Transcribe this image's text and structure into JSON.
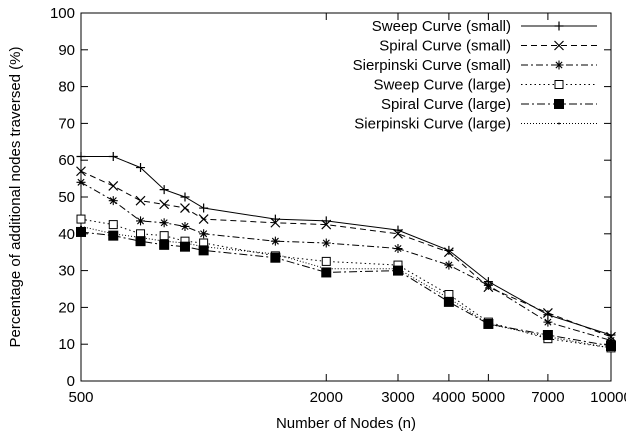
{
  "chart_data": {
    "type": "line",
    "xlabel": "Number of Nodes (n)",
    "ylabel": "Percentage of additional nodes traversed (%)",
    "xlim": [
      500,
      10000
    ],
    "ylim": [
      0,
      100
    ],
    "x_scale": "log",
    "x_ticks": [
      500,
      2000,
      3000,
      4000,
      5000,
      7000,
      10000
    ],
    "y_ticks": [
      0,
      10,
      20,
      30,
      40,
      50,
      60,
      70,
      80,
      90,
      100
    ],
    "grid": false,
    "legend_position": "top-right",
    "series": [
      {
        "name": "Sweep Curve (small)",
        "marker": "plus",
        "dash": "solid",
        "x": [
          500,
          600,
          700,
          800,
          900,
          1000,
          1500,
          2000,
          3000,
          4000,
          5000,
          7000,
          10000
        ],
        "y": [
          61,
          61,
          58,
          52,
          50,
          47,
          44,
          43.5,
          41,
          35.5,
          27,
          18,
          12.5
        ]
      },
      {
        "name": "Spiral Curve (small)",
        "marker": "cross",
        "dash": "dashed",
        "x": [
          500,
          600,
          700,
          800,
          900,
          1000,
          1500,
          2000,
          3000,
          4000,
          5000,
          7000,
          10000
        ],
        "y": [
          57,
          53,
          49,
          48,
          47,
          44,
          43,
          42.5,
          40,
          35,
          25.5,
          18.5,
          12
        ]
      },
      {
        "name": "Sierpinski Curve (small)",
        "marker": "star",
        "dash": "dashdot",
        "x": [
          500,
          600,
          700,
          800,
          900,
          1000,
          1500,
          2000,
          3000,
          4000,
          5000,
          7000,
          10000
        ],
        "y": [
          54,
          49,
          43.5,
          43,
          42,
          40,
          38,
          37.5,
          36,
          31.5,
          26,
          16,
          11
        ]
      },
      {
        "name": "Sweep Curve (large)",
        "marker": "square-open",
        "dash": "dotted",
        "x": [
          500,
          600,
          700,
          800,
          900,
          1000,
          1500,
          2000,
          3000,
          4000,
          5000,
          7000,
          10000
        ],
        "y": [
          44,
          42.5,
          40,
          39.5,
          38,
          37.5,
          34,
          32.5,
          31.5,
          23.5,
          16,
          11.5,
          9
        ]
      },
      {
        "name": "Spiral Curve (large)",
        "marker": "square-filled",
        "dash": "dashdot2",
        "x": [
          500,
          600,
          700,
          800,
          900,
          1000,
          1500,
          2000,
          3000,
          4000,
          5000,
          7000,
          10000
        ],
        "y": [
          40.5,
          39.5,
          38,
          37,
          36.5,
          35.5,
          33.5,
          29.5,
          30,
          21.5,
          15.5,
          12.5,
          9.5
        ]
      },
      {
        "name": "Sierpinski Curve (large)",
        "marker": "dot",
        "dash": "finedot",
        "x": [
          500,
          600,
          700,
          800,
          900,
          1000,
          1500,
          2000,
          3000,
          4000,
          5000,
          7000,
          10000
        ],
        "y": [
          42,
          40,
          39,
          38,
          37.5,
          36.5,
          34.5,
          30.5,
          30.5,
          22.5,
          15.5,
          12,
          9
        ]
      }
    ]
  }
}
